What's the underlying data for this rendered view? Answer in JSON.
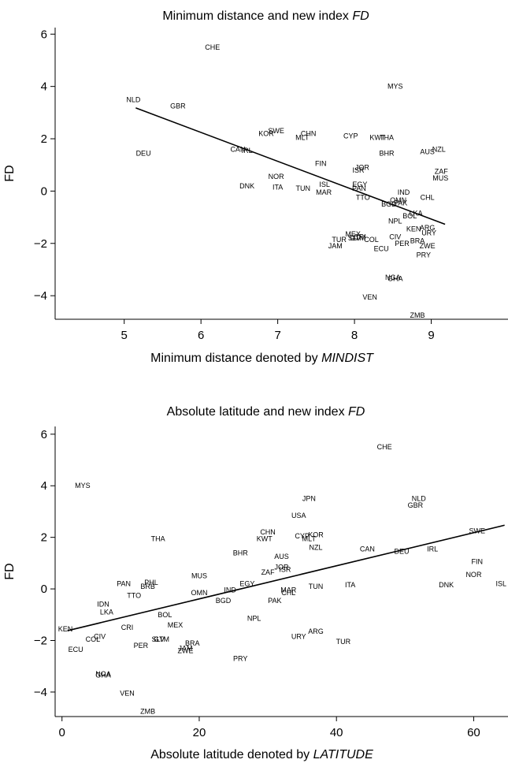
{
  "chart_data": [
    {
      "type": "scatter",
      "title": "Minimum distance and new index ",
      "title_italic": "FD",
      "xlabel": "Minimum distance denoted by ",
      "xlabel_italic": "MINDIST",
      "ylabel": "FD",
      "xlim": [
        4.1,
        10.0
      ],
      "ylim": [
        -4.9,
        6.25
      ],
      "xticks": [
        5,
        6,
        7,
        8,
        9
      ],
      "xtick_labels": [
        "5",
        "6",
        "7",
        "8",
        "9"
      ],
      "yticks": [
        -4,
        -2,
        0,
        2,
        4,
        6
      ],
      "ytick_labels": [
        "−4",
        "−2",
        "0",
        "2",
        "4",
        "6"
      ],
      "fit_line": {
        "x": [
          5.15,
          9.18
        ],
        "y": [
          3.18,
          -1.27
        ]
      },
      "points": [
        {
          "label": "CHE",
          "x": 6.15,
          "y": 5.5
        },
        {
          "label": "MYS",
          "x": 8.53,
          "y": 4.0
        },
        {
          "label": "NLD",
          "x": 5.12,
          "y": 3.5
        },
        {
          "label": "GBR",
          "x": 5.7,
          "y": 3.25
        },
        {
          "label": "SWE",
          "x": 6.98,
          "y": 2.3
        },
        {
          "label": "KOR",
          "x": 6.85,
          "y": 2.2
        },
        {
          "label": "CHN",
          "x": 7.4,
          "y": 2.2
        },
        {
          "label": "MLT",
          "x": 7.32,
          "y": 2.05
        },
        {
          "label": "CYP",
          "x": 7.95,
          "y": 2.1
        },
        {
          "label": "KWT",
          "x": 8.3,
          "y": 2.05
        },
        {
          "label": "THA",
          "x": 8.42,
          "y": 2.05
        },
        {
          "label": "AUS",
          "x": 8.95,
          "y": 1.5
        },
        {
          "label": "NZL",
          "x": 9.1,
          "y": 1.6
        },
        {
          "label": "BHR",
          "x": 8.42,
          "y": 1.45
        },
        {
          "label": "DEU",
          "x": 5.25,
          "y": 1.45
        },
        {
          "label": "CAN",
          "x": 6.48,
          "y": 1.6
        },
        {
          "label": "IRL",
          "x": 6.6,
          "y": 1.55
        },
        {
          "label": "FIN",
          "x": 7.56,
          "y": 1.05
        },
        {
          "label": "JOR",
          "x": 8.1,
          "y": 0.9
        },
        {
          "label": "ISR",
          "x": 8.05,
          "y": 0.8
        },
        {
          "label": "ZAF",
          "x": 9.13,
          "y": 0.75
        },
        {
          "label": "MUS",
          "x": 9.12,
          "y": 0.5
        },
        {
          "label": "NOR",
          "x": 6.98,
          "y": 0.55
        },
        {
          "label": "DNK",
          "x": 6.6,
          "y": 0.2
        },
        {
          "label": "ITA",
          "x": 7.0,
          "y": 0.15
        },
        {
          "label": "TUN",
          "x": 7.33,
          "y": 0.1
        },
        {
          "label": "ISL",
          "x": 7.61,
          "y": 0.25
        },
        {
          "label": "MAR",
          "x": 7.6,
          "y": -0.05
        },
        {
          "label": "PAN",
          "x": 8.06,
          "y": 0.1
        },
        {
          "label": "EGY",
          "x": 8.07,
          "y": 0.25
        },
        {
          "label": "TTO",
          "x": 8.11,
          "y": -0.25
        },
        {
          "label": "IND",
          "x": 8.64,
          "y": -0.05
        },
        {
          "label": "OMN",
          "x": 8.57,
          "y": -0.35
        },
        {
          "label": "BGD",
          "x": 8.45,
          "y": -0.5
        },
        {
          "label": "PAK",
          "x": 8.6,
          "y": -0.45
        },
        {
          "label": "CHL",
          "x": 8.95,
          "y": -0.25
        },
        {
          "label": "LKA",
          "x": 8.8,
          "y": -0.85
        },
        {
          "label": "BOL",
          "x": 8.72,
          "y": -0.95
        },
        {
          "label": "NPL",
          "x": 8.53,
          "y": -1.15
        },
        {
          "label": "ARG",
          "x": 8.95,
          "y": -1.4
        },
        {
          "label": "KEN",
          "x": 8.77,
          "y": -1.45
        },
        {
          "label": "URY",
          "x": 8.97,
          "y": -1.6
        },
        {
          "label": "MEX",
          "x": 7.98,
          "y": -1.65
        },
        {
          "label": "CRI",
          "x": 8.07,
          "y": -1.75
        },
        {
          "label": "CIV",
          "x": 8.53,
          "y": -1.75
        },
        {
          "label": "BRA",
          "x": 8.82,
          "y": -1.9
        },
        {
          "label": "TUR",
          "x": 7.8,
          "y": -1.85
        },
        {
          "label": "GTM",
          "x": 8.04,
          "y": -1.8
        },
        {
          "label": "SLV",
          "x": 8.0,
          "y": -1.8
        },
        {
          "label": "COL",
          "x": 8.22,
          "y": -1.85
        },
        {
          "label": "PER",
          "x": 8.62,
          "y": -2.0
        },
        {
          "label": "ZWE",
          "x": 8.95,
          "y": -2.1
        },
        {
          "label": "JAM",
          "x": 7.75,
          "y": -2.1
        },
        {
          "label": "ECU",
          "x": 8.35,
          "y": -2.2
        },
        {
          "label": "PRY",
          "x": 8.9,
          "y": -2.45
        },
        {
          "label": "NGA",
          "x": 8.5,
          "y": -3.3
        },
        {
          "label": "GHA",
          "x": 8.53,
          "y": -3.35
        },
        {
          "label": "VEN",
          "x": 8.2,
          "y": -4.05
        },
        {
          "label": "ZMB",
          "x": 8.82,
          "y": -4.75
        }
      ]
    },
    {
      "type": "scatter",
      "title": "Absolute latitude and new index ",
      "title_italic": "FD",
      "xlabel": "Absolute latitude denoted by ",
      "xlabel_italic": "LATITUDE",
      "ylabel": "FD",
      "xlim": [
        -1,
        65
      ],
      "ylim": [
        -4.95,
        6.3
      ],
      "xticks": [
        0,
        20,
        40,
        60
      ],
      "xtick_labels": [
        "0",
        "20",
        "40",
        "60"
      ],
      "yticks": [
        -4,
        -2,
        0,
        2,
        4,
        6
      ],
      "ytick_labels": [
        "−4",
        "−2",
        "0",
        "2",
        "4",
        "6"
      ],
      "fit_line": {
        "x": [
          0.8,
          64.5
        ],
        "y": [
          -1.62,
          2.47
        ]
      },
      "points": [
        {
          "label": "CHE",
          "x": 47,
          "y": 5.5
        },
        {
          "label": "MYS",
          "x": 3,
          "y": 4.0
        },
        {
          "label": "JPN",
          "x": 36,
          "y": 3.5
        },
        {
          "label": "NLD",
          "x": 52,
          "y": 3.5
        },
        {
          "label": "GBR",
          "x": 51.5,
          "y": 3.25
        },
        {
          "label": "USA",
          "x": 34.5,
          "y": 2.85
        },
        {
          "label": "THA",
          "x": 14,
          "y": 1.95
        },
        {
          "label": "CHN",
          "x": 30,
          "y": 2.2
        },
        {
          "label": "KWT",
          "x": 29.5,
          "y": 1.95
        },
        {
          "label": "CYP",
          "x": 35,
          "y": 2.05
        },
        {
          "label": "KOR",
          "x": 37,
          "y": 2.1
        },
        {
          "label": "MLT",
          "x": 36,
          "y": 1.95
        },
        {
          "label": "SWE",
          "x": 60.5,
          "y": 2.25
        },
        {
          "label": "CAN",
          "x": 44.5,
          "y": 1.55
        },
        {
          "label": "DEU",
          "x": 49.5,
          "y": 1.45
        },
        {
          "label": "IRL",
          "x": 54,
          "y": 1.55
        },
        {
          "label": "NZL",
          "x": 37,
          "y": 1.6
        },
        {
          "label": "AUS",
          "x": 32,
          "y": 1.25
        },
        {
          "label": "BHR",
          "x": 26,
          "y": 1.4
        },
        {
          "label": "FIN",
          "x": 60.5,
          "y": 1.05
        },
        {
          "label": "NOR",
          "x": 60,
          "y": 0.55
        },
        {
          "label": "ISL",
          "x": 64,
          "y": 0.2
        },
        {
          "label": "DNK",
          "x": 56,
          "y": 0.15
        },
        {
          "label": "ITA",
          "x": 42,
          "y": 0.15
        },
        {
          "label": "JOR",
          "x": 32,
          "y": 0.85
        },
        {
          "label": "ISR",
          "x": 32.5,
          "y": 0.75
        },
        {
          "label": "ZAF",
          "x": 30,
          "y": 0.65
        },
        {
          "label": "MUS",
          "x": 20,
          "y": 0.5
        },
        {
          "label": "EGY",
          "x": 27,
          "y": 0.2
        },
        {
          "label": "TUN",
          "x": 37,
          "y": 0.1
        },
        {
          "label": "MAR",
          "x": 33,
          "y": -0.05
        },
        {
          "label": "CHL",
          "x": 33,
          "y": -0.15
        },
        {
          "label": "PAK",
          "x": 31,
          "y": -0.45
        },
        {
          "label": "IND",
          "x": 24.5,
          "y": -0.05
        },
        {
          "label": "OMN",
          "x": 20,
          "y": -0.15
        },
        {
          "label": "BGD",
          "x": 23.5,
          "y": -0.45
        },
        {
          "label": "PAN",
          "x": 9,
          "y": 0.2
        },
        {
          "label": "PHL",
          "x": 13,
          "y": 0.25
        },
        {
          "label": "BRB",
          "x": 12.5,
          "y": 0.1
        },
        {
          "label": "TTO",
          "x": 10.5,
          "y": -0.25
        },
        {
          "label": "IDN",
          "x": 6,
          "y": -0.6
        },
        {
          "label": "LKA",
          "x": 6.5,
          "y": -0.9
        },
        {
          "label": "BOL",
          "x": 15,
          "y": -1.0
        },
        {
          "label": "MEX",
          "x": 16.5,
          "y": -1.4
        },
        {
          "label": "CRI",
          "x": 9.5,
          "y": -1.5
        },
        {
          "label": "NPL",
          "x": 28,
          "y": -1.15
        },
        {
          "label": "KEN",
          "x": 0.5,
          "y": -1.55
        },
        {
          "label": "CIV",
          "x": 5.5,
          "y": -1.85
        },
        {
          "label": "COL",
          "x": 4.5,
          "y": -1.95
        },
        {
          "label": "ECU",
          "x": 2,
          "y": -2.35
        },
        {
          "label": "PER",
          "x": 11.5,
          "y": -2.2
        },
        {
          "label": "SLV",
          "x": 14,
          "y": -1.95
        },
        {
          "label": "GTM",
          "x": 14.5,
          "y": -1.95
        },
        {
          "label": "BRA",
          "x": 19,
          "y": -2.1
        },
        {
          "label": "JAM",
          "x": 18,
          "y": -2.3
        },
        {
          "label": "ZWE",
          "x": 18,
          "y": -2.4
        },
        {
          "label": "ARG",
          "x": 37,
          "y": -1.65
        },
        {
          "label": "URY",
          "x": 34.5,
          "y": -1.85
        },
        {
          "label": "TUR",
          "x": 41,
          "y": -2.05
        },
        {
          "label": "PRY",
          "x": 26,
          "y": -2.7
        },
        {
          "label": "NGA",
          "x": 6,
          "y": -3.3
        },
        {
          "label": "GHA",
          "x": 6,
          "y": -3.35
        },
        {
          "label": "VEN",
          "x": 9.5,
          "y": -4.05
        },
        {
          "label": "ZMB",
          "x": 12.5,
          "y": -4.75
        }
      ]
    }
  ]
}
